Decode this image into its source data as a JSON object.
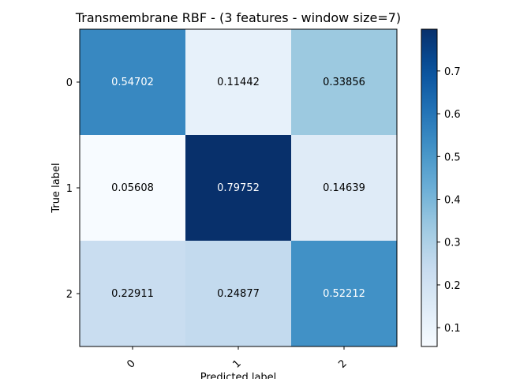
{
  "chart_data": {
    "type": "heatmap",
    "title": "Transmembrane RBF - (3 features - window size=7)",
    "xlabel": "Predicted label",
    "ylabel": "True label",
    "x_categories": [
      "0",
      "1",
      "2"
    ],
    "y_categories": [
      "0",
      "1",
      "2"
    ],
    "cell_labels": [
      [
        "0.54702",
        "0.11442",
        "0.33856"
      ],
      [
        "0.05608",
        "0.79752",
        "0.14639"
      ],
      [
        "0.22911",
        "0.24877",
        "0.52212"
      ]
    ],
    "values": [
      [
        0.54702,
        0.11442,
        0.33856
      ],
      [
        0.05608,
        0.79752,
        0.14639
      ],
      [
        0.22911,
        0.24877,
        0.52212
      ]
    ],
    "colormap": "Blues",
    "colorbar": {
      "range": [
        0.05608,
        0.79752
      ],
      "ticks": [
        0.1,
        0.2,
        0.3,
        0.4,
        0.5,
        0.6,
        0.7
      ],
      "tick_labels": [
        "0.1",
        "0.2",
        "0.3",
        "0.4",
        "0.5",
        "0.6",
        "0.7"
      ]
    },
    "x_tick_rotation": "45",
    "grid": false,
    "text_colors": {
      "dark": "#000000",
      "light": "#ffffff"
    }
  }
}
